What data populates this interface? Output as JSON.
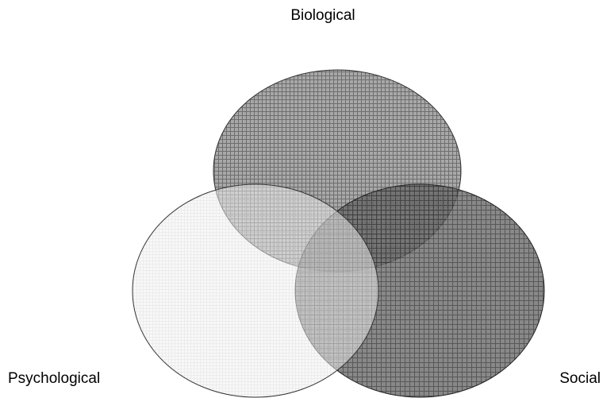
{
  "labels": {
    "top": "Biological",
    "left": "Psychological",
    "right": "Social"
  }
}
